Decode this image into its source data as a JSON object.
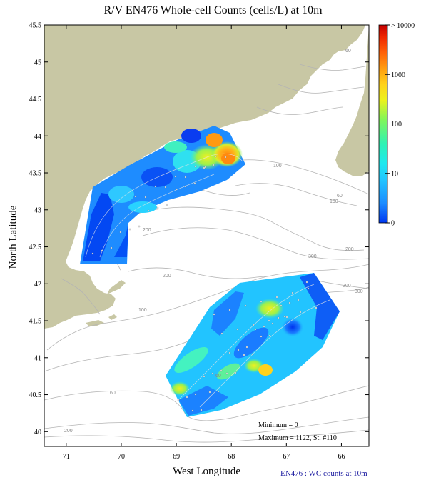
{
  "title": "R/V EN476 Whole-cell Counts (cells/L) at 10m",
  "xlabel": "West Longitude",
  "ylabel": "North Latitude",
  "footer_note": "EN476 : WC counts at 10m",
  "colors": {
    "land": "#c8c7a4",
    "ocean": "#ffffff",
    "contour": "#b4b4b4",
    "coast_line": "#9a9a9a"
  },
  "map": {
    "lon_range": [
      71.4,
      65.5
    ],
    "lat_range": [
      39.8,
      45.5
    ],
    "x_ticks": [
      71,
      70,
      69,
      68,
      67,
      66
    ],
    "y_ticks": [
      40,
      40.5,
      41,
      41.5,
      42,
      42.5,
      43,
      43.5,
      44,
      44.5,
      45,
      45.5
    ],
    "contour_labels": [
      "60",
      "100",
      "200",
      "200",
      "60",
      "100",
      "200",
      "300",
      "100",
      "200",
      "300",
      "60",
      "60",
      "200"
    ]
  },
  "colorbar": {
    "labels": [
      "> 10000",
      "1000",
      "100",
      "10",
      "0"
    ],
    "stops": [
      "#0037f0",
      "#1c8cff",
      "#23c6ff",
      "#1ee8ef",
      "#2ef2b4",
      "#7ff65a",
      "#ecf21c",
      "#ffd21c",
      "#ff9d10",
      "#ff6208",
      "#ee2600",
      "#c40000"
    ]
  },
  "stats": {
    "minimum": "Minimum = 0",
    "maximum": "Maximum = 1122, St. #110"
  }
}
